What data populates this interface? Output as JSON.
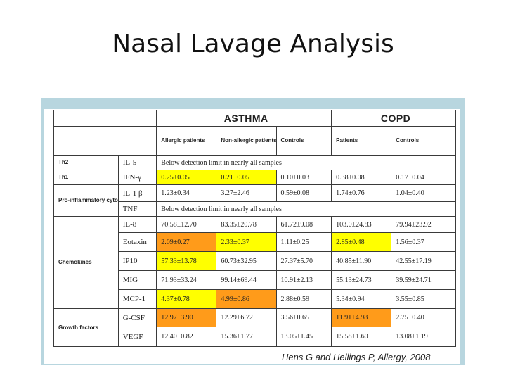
{
  "slide": {
    "title": "Nasal Lavage Analysis",
    "credit": "Hens G and Hellings P, Allergy, 2008"
  },
  "table": {
    "groups": {
      "asthma": "ASTHMA",
      "copd": "COPD"
    },
    "columns": {
      "allergic": "Allergic patients",
      "non_allergic": "Non-allergic patients",
      "asthma_controls": "Controls",
      "copd_patients": "Patients",
      "copd_controls": "Controls"
    },
    "rows": [
      {
        "cat": "Th2",
        "marker": "IL-5",
        "span": "Below detection limit in nearly all samples"
      },
      {
        "cat": "Th1",
        "marker": "IFN-γ",
        "values": [
          "0.25±0.05",
          "0.21±0.05",
          "0.10±0.03",
          "0.38±0.08",
          "0.17±0.04"
        ]
      },
      {
        "cat": "Pro-inflammatory cytokines",
        "marker": "IL-1 β",
        "values": [
          "1.23±0.34",
          "3.27±2.46",
          "0.59±0.08",
          "1.74±0.76",
          "1.04±0.40"
        ]
      },
      {
        "marker": "TNF",
        "span": "Below detection limit in nearly all samples"
      },
      {
        "cat": "Chemokines",
        "marker": "IL-8",
        "values": [
          "70.58±12.70",
          "83.35±20.78",
          "61.72±9.08",
          "103.0±24.83",
          "79.94±23.92"
        ]
      },
      {
        "marker": "Eotaxin",
        "values": [
          "2.09±0.27",
          "2.33±0.37",
          "1.11±0.25",
          "2.85±0.48",
          "1.56±0.37"
        ]
      },
      {
        "marker": "IP10",
        "values": [
          "57.33±13.78",
          "60.73±32.95",
          "27.37±5.70",
          "40.85±11.90",
          "42.55±17.19"
        ]
      },
      {
        "marker": "MIG",
        "values": [
          "71.93±33.24",
          "99.14±69.44",
          "10.91±2.13",
          "55.13±24.73",
          "39.59±24.71"
        ]
      },
      {
        "marker": "MCP-1",
        "values": [
          "4.37±0.78",
          "4.99±0.86",
          "2.88±0.59",
          "5.34±0.94",
          "3.55±0.85"
        ]
      },
      {
        "cat": "Growth factors",
        "marker": "G-CSF",
        "values": [
          "12.97±3.90",
          "12.29±6.72",
          "3.56±0.65",
          "11.91±4.98",
          "2.75±0.40"
        ]
      },
      {
        "marker": "VEGF",
        "values": [
          "12.40±0.82",
          "15.36±1.77",
          "13.05±1.45",
          "15.58±1.60",
          "13.08±1.19"
        ]
      }
    ]
  },
  "highlights": {
    "yellow": "#ffff00",
    "orange": "#ff9b1a"
  }
}
